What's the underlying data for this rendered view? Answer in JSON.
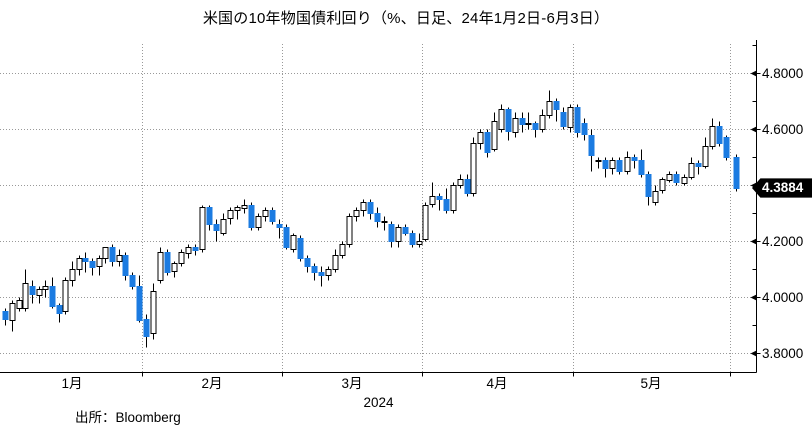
{
  "title": "米国の10年物国債利回り（%、日足、24年1月2日-6月3日）",
  "source": "出所：Bloomberg",
  "chart_data": {
    "type": "candlestick",
    "title": "米国の10年物国債利回り（%、日足、24年1月2日-6月3日）",
    "ylabel": "%",
    "ylim": [
      3.73,
      4.91
    ],
    "grid": "dotted",
    "legend": "none",
    "last_price": 4.3884,
    "last_price_label": "4.3884",
    "y_axis": {
      "majors": [
        {
          "v": 4.8,
          "label": "4.8000"
        },
        {
          "v": 4.6,
          "label": "4.6000"
        },
        {
          "v": 4.4,
          "label": "4.4000"
        },
        {
          "v": 4.2,
          "label": "4.2000"
        },
        {
          "v": 4.0,
          "label": "4.0000"
        },
        {
          "v": 3.8,
          "label": "3.8000"
        }
      ],
      "minors": [
        4.9,
        4.7,
        4.5,
        4.3,
        4.1,
        3.9
      ]
    },
    "x_axis": {
      "months": [
        {
          "m": 1,
          "label": "1月"
        },
        {
          "m": 2,
          "label": "2月"
        },
        {
          "m": 3,
          "label": "3月"
        },
        {
          "m": 4,
          "label": "4月"
        },
        {
          "m": 5,
          "label": "5月"
        }
      ],
      "year_label": "2024"
    },
    "colors": {
      "up_fill": "#ffffff",
      "up_stroke": "#000000",
      "down_fill": "#1b7be1",
      "wick": "#000000",
      "grid": "#999999",
      "axis": "#000000",
      "badge_bg": "#000000",
      "badge_text": "#ffffff"
    },
    "candle_columns": [
      "date",
      "open",
      "high",
      "low",
      "close"
    ],
    "candles": [
      [
        "1/2",
        3.95,
        3.96,
        3.9,
        3.92
      ],
      [
        "1/3",
        3.92,
        3.99,
        3.88,
        3.98
      ],
      [
        "1/4",
        3.96,
        4.0,
        3.95,
        3.99
      ],
      [
        "1/5",
        3.96,
        4.1,
        3.95,
        4.05
      ],
      [
        "1/8",
        4.04,
        4.06,
        3.98,
        4.01
      ],
      [
        "1/9",
        4.01,
        4.04,
        3.98,
        4.03
      ],
      [
        "1/10",
        4.03,
        4.06,
        4.0,
        4.04
      ],
      [
        "1/11",
        4.04,
        4.07,
        3.96,
        3.97
      ],
      [
        "1/12",
        3.97,
        3.98,
        3.91,
        3.94
      ],
      [
        "1/16",
        3.95,
        4.07,
        3.94,
        4.06
      ],
      [
        "1/17",
        4.06,
        4.13,
        4.04,
        4.1
      ],
      [
        "1/18",
        4.1,
        4.15,
        4.08,
        4.14
      ],
      [
        "1/19",
        4.14,
        4.16,
        4.09,
        4.13
      ],
      [
        "1/22",
        4.13,
        4.14,
        4.08,
        4.11
      ],
      [
        "1/23",
        4.11,
        4.15,
        4.08,
        4.14
      ],
      [
        "1/24",
        4.14,
        4.18,
        4.12,
        4.18
      ],
      [
        "1/25",
        4.18,
        4.19,
        4.11,
        4.13
      ],
      [
        "1/26",
        4.13,
        4.17,
        4.11,
        4.15
      ],
      [
        "1/29",
        4.15,
        4.16,
        4.06,
        4.08
      ],
      [
        "1/30",
        4.08,
        4.09,
        4.03,
        4.04
      ],
      [
        "1/31",
        4.04,
        4.08,
        3.91,
        3.92
      ],
      [
        "2/1",
        3.92,
        3.94,
        3.82,
        3.86
      ],
      [
        "2/2",
        3.87,
        4.05,
        3.85,
        4.02
      ],
      [
        "2/5",
        4.06,
        4.18,
        4.05,
        4.16
      ],
      [
        "2/6",
        4.16,
        4.17,
        4.08,
        4.09
      ],
      [
        "2/7",
        4.09,
        4.13,
        4.07,
        4.12
      ],
      [
        "2/8",
        4.12,
        4.17,
        4.11,
        4.16
      ],
      [
        "2/9",
        4.16,
        4.19,
        4.14,
        4.18
      ],
      [
        "2/12",
        4.18,
        4.19,
        4.15,
        4.17
      ],
      [
        "2/13",
        4.17,
        4.33,
        4.16,
        4.32
      ],
      [
        "2/14",
        4.32,
        4.33,
        4.24,
        4.26
      ],
      [
        "2/15",
        4.26,
        4.28,
        4.2,
        4.24
      ],
      [
        "2/16",
        4.23,
        4.3,
        4.22,
        4.28
      ],
      [
        "2/20",
        4.28,
        4.32,
        4.26,
        4.31
      ],
      [
        "2/21",
        4.31,
        4.33,
        4.28,
        4.32
      ],
      [
        "2/22",
        4.32,
        4.35,
        4.3,
        4.33
      ],
      [
        "2/23",
        4.33,
        4.34,
        4.24,
        4.25
      ],
      [
        "2/26",
        4.25,
        4.3,
        4.24,
        4.29
      ],
      [
        "2/27",
        4.29,
        4.32,
        4.27,
        4.31
      ],
      [
        "2/28",
        4.31,
        4.32,
        4.26,
        4.27
      ],
      [
        "2/29",
        4.26,
        4.28,
        4.21,
        4.25
      ],
      [
        "3/1",
        4.25,
        4.26,
        4.17,
        4.18
      ],
      [
        "3/4",
        4.17,
        4.23,
        4.16,
        4.22
      ],
      [
        "3/5",
        4.21,
        4.22,
        4.13,
        4.14
      ],
      [
        "3/6",
        4.14,
        4.15,
        4.09,
        4.11
      ],
      [
        "3/7",
        4.11,
        4.12,
        4.06,
        4.09
      ],
      [
        "3/8",
        4.09,
        4.11,
        4.04,
        4.08
      ],
      [
        "3/11",
        4.08,
        4.11,
        4.06,
        4.1
      ],
      [
        "3/12",
        4.1,
        4.17,
        4.09,
        4.15
      ],
      [
        "3/13",
        4.15,
        4.2,
        4.14,
        4.19
      ],
      [
        "3/14",
        4.19,
        4.3,
        4.18,
        4.29
      ],
      [
        "3/15",
        4.29,
        4.32,
        4.27,
        4.31
      ],
      [
        "3/18",
        4.31,
        4.35,
        4.29,
        4.34
      ],
      [
        "3/19",
        4.34,
        4.35,
        4.28,
        4.3
      ],
      [
        "3/20",
        4.3,
        4.32,
        4.25,
        4.27
      ],
      [
        "3/21",
        4.27,
        4.29,
        4.24,
        4.27
      ],
      [
        "3/22",
        4.26,
        4.27,
        4.18,
        4.2
      ],
      [
        "3/25",
        4.2,
        4.26,
        4.18,
        4.25
      ],
      [
        "3/26",
        4.25,
        4.26,
        4.22,
        4.23
      ],
      [
        "3/27",
        4.23,
        4.24,
        4.18,
        4.19
      ],
      [
        "3/28",
        4.19,
        4.23,
        4.18,
        4.2
      ],
      [
        "4/1",
        4.21,
        4.34,
        4.2,
        4.33
      ],
      [
        "4/2",
        4.33,
        4.41,
        4.32,
        4.36
      ],
      [
        "4/3",
        4.36,
        4.37,
        4.31,
        4.35
      ],
      [
        "4/4",
        4.35,
        4.39,
        4.3,
        4.31
      ],
      [
        "4/5",
        4.31,
        4.41,
        4.3,
        4.4
      ],
      [
        "4/8",
        4.4,
        4.44,
        4.39,
        4.42
      ],
      [
        "4/9",
        4.42,
        4.44,
        4.36,
        4.37
      ],
      [
        "4/10",
        4.37,
        4.57,
        4.36,
        4.55
      ],
      [
        "4/11",
        4.55,
        4.6,
        4.53,
        4.59
      ],
      [
        "4/12",
        4.59,
        4.6,
        4.5,
        4.52
      ],
      [
        "4/15",
        4.53,
        4.66,
        4.52,
        4.63
      ],
      [
        "4/16",
        4.6,
        4.69,
        4.59,
        4.67
      ],
      [
        "4/17",
        4.67,
        4.68,
        4.56,
        4.59
      ],
      [
        "4/18",
        4.59,
        4.66,
        4.57,
        4.64
      ],
      [
        "4/19",
        4.64,
        4.66,
        4.59,
        4.62
      ],
      [
        "4/22",
        4.62,
        4.66,
        4.6,
        4.62
      ],
      [
        "4/23",
        4.62,
        4.63,
        4.57,
        4.6
      ],
      [
        "4/24",
        4.6,
        4.67,
        4.59,
        4.65
      ],
      [
        "4/25",
        4.65,
        4.74,
        4.64,
        4.7
      ],
      [
        "4/26",
        4.7,
        4.71,
        4.63,
        4.67
      ],
      [
        "4/29",
        4.66,
        4.68,
        4.6,
        4.61
      ],
      [
        "4/30",
        4.61,
        4.69,
        4.59,
        4.68
      ],
      [
        "5/1",
        4.68,
        4.69,
        4.57,
        4.59
      ],
      [
        "5/2",
        4.62,
        4.64,
        4.56,
        4.58
      ],
      [
        "5/3",
        4.58,
        4.6,
        4.45,
        4.51
      ],
      [
        "5/6",
        4.49,
        4.5,
        4.46,
        4.49
      ],
      [
        "5/7",
        4.49,
        4.5,
        4.43,
        4.46
      ],
      [
        "5/8",
        4.46,
        4.5,
        4.44,
        4.49
      ],
      [
        "5/9",
        4.49,
        4.5,
        4.44,
        4.45
      ],
      [
        "5/10",
        4.45,
        4.52,
        4.44,
        4.5
      ],
      [
        "5/13",
        4.5,
        4.51,
        4.46,
        4.49
      ],
      [
        "5/14",
        4.49,
        4.53,
        4.43,
        4.44
      ],
      [
        "5/15",
        4.44,
        4.45,
        4.33,
        4.36
      ],
      [
        "5/16",
        4.34,
        4.4,
        4.33,
        4.38
      ],
      [
        "5/17",
        4.38,
        4.43,
        4.37,
        4.42
      ],
      [
        "5/20",
        4.42,
        4.45,
        4.41,
        4.44
      ],
      [
        "5/21",
        4.44,
        4.45,
        4.4,
        4.41
      ],
      [
        "5/22",
        4.41,
        4.44,
        4.4,
        4.43
      ],
      [
        "5/23",
        4.43,
        4.5,
        4.42,
        4.48
      ],
      [
        "5/24",
        4.48,
        4.49,
        4.44,
        4.47
      ],
      [
        "5/28",
        4.47,
        4.57,
        4.46,
        4.54
      ],
      [
        "5/29",
        4.54,
        4.64,
        4.53,
        4.61
      ],
      [
        "5/30",
        4.61,
        4.63,
        4.54,
        4.55
      ],
      [
        "5/31",
        4.57,
        4.58,
        4.49,
        4.5
      ],
      [
        "6/3",
        4.5,
        4.51,
        4.38,
        4.3884
      ]
    ]
  }
}
